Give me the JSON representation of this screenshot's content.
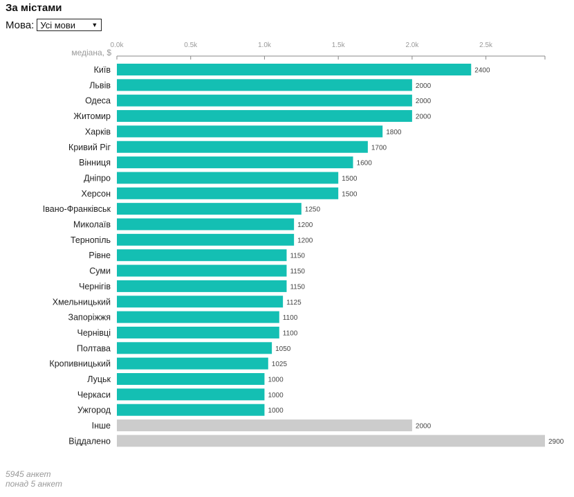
{
  "header": {
    "title": "За містами"
  },
  "language_filter": {
    "label": "Мова:",
    "selected": "Усі мови"
  },
  "chart_data": {
    "type": "bar",
    "orientation": "horizontal",
    "axis_label": "медіана, $",
    "xlim": [
      0,
      2900
    ],
    "ticks": [
      {
        "value": 0,
        "label": "0.0k"
      },
      {
        "value": 500,
        "label": "0.5k"
      },
      {
        "value": 1000,
        "label": "1.0k"
      },
      {
        "value": 1500,
        "label": "1.5k"
      },
      {
        "value": 2000,
        "label": "2.0k"
      },
      {
        "value": 2500,
        "label": "2.5k"
      }
    ],
    "categories": [
      "Київ",
      "Львів",
      "Одеса",
      "Житомир",
      "Харків",
      "Кривий Ріг",
      "Вінниця",
      "Дніпро",
      "Херсон",
      "Івано-Франківськ",
      "Миколаїв",
      "Тернопіль",
      "Рівне",
      "Суми",
      "Чернігів",
      "Хмельницький",
      "Запоріжжя",
      "Чернівці",
      "Полтава",
      "Кропивницький",
      "Луцьк",
      "Черкаси",
      "Ужгород",
      "Інше",
      "Віддалено"
    ],
    "values": [
      2400,
      2000,
      2000,
      2000,
      1800,
      1700,
      1600,
      1500,
      1500,
      1250,
      1200,
      1200,
      1150,
      1150,
      1150,
      1125,
      1100,
      1100,
      1050,
      1025,
      1000,
      1000,
      1000,
      2000,
      2900
    ],
    "highlight": [
      true,
      true,
      true,
      true,
      true,
      true,
      true,
      true,
      true,
      true,
      true,
      true,
      true,
      true,
      true,
      true,
      true,
      true,
      true,
      true,
      true,
      true,
      true,
      false,
      false
    ],
    "colors": {
      "primary": "#14bfb3",
      "secondary": "#cccccc",
      "axis": "#888888"
    }
  },
  "footer": {
    "responses": "5945 анкет",
    "threshold": "понад 5 анкет"
  }
}
